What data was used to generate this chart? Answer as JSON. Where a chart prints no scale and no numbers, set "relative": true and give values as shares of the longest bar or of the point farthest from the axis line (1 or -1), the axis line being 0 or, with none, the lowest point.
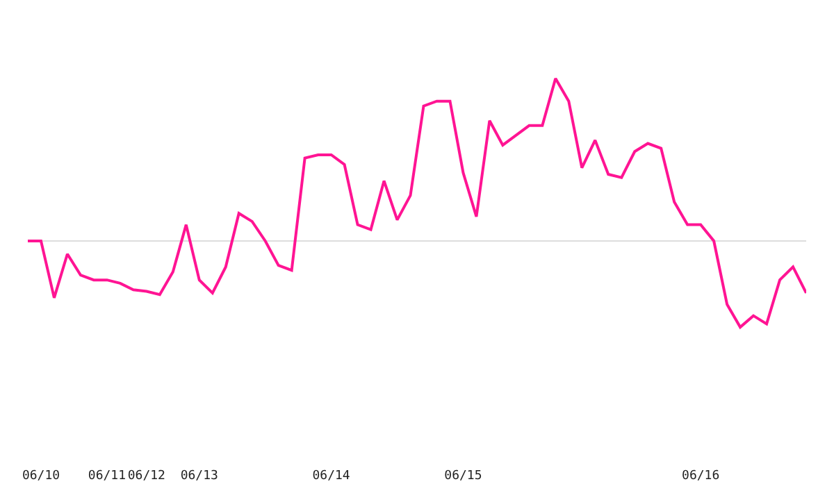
{
  "chart_data": {
    "type": "line",
    "relative": true,
    "legend": false,
    "marker": "none",
    "line_style": "solid",
    "categories": [
      null,
      "06/10",
      null,
      null,
      null,
      null,
      "06/11",
      null,
      null,
      "06/12",
      null,
      null,
      null,
      "06/13",
      null,
      null,
      null,
      null,
      null,
      null,
      null,
      null,
      null,
      "06/14",
      null,
      null,
      null,
      null,
      null,
      null,
      null,
      null,
      null,
      "06/15",
      null,
      null,
      null,
      null,
      null,
      null,
      null,
      null,
      null,
      null,
      null,
      null,
      null,
      null,
      null,
      null,
      null,
      "06/16",
      null,
      null,
      null,
      null,
      null,
      null,
      null,
      null
    ],
    "series": [
      {
        "color": "#ff1493",
        "values": [
          0,
          0,
          -0.35,
          -0.08,
          -0.21,
          -0.24,
          -0.24,
          -0.26,
          -0.3,
          -0.31,
          -0.33,
          -0.19,
          0.1,
          -0.24,
          -0.32,
          -0.16,
          0.17,
          0.12,
          0,
          -0.15,
          -0.18,
          0.51,
          0.53,
          0.53,
          0.47,
          0.1,
          0.07,
          0.37,
          0.13,
          0.28,
          0.83,
          0.86,
          0.86,
          0.42,
          0.15,
          0.74,
          0.59,
          0.65,
          0.71,
          0.71,
          1,
          0.86,
          0.45,
          0.62,
          0.41,
          0.39,
          0.55,
          0.6,
          0.57,
          0.24,
          0.1,
          0.1,
          0,
          -0.39,
          -0.53,
          -0.46,
          -0.51,
          -0.24,
          -0.16,
          -0.32
        ]
      }
    ]
  }
}
